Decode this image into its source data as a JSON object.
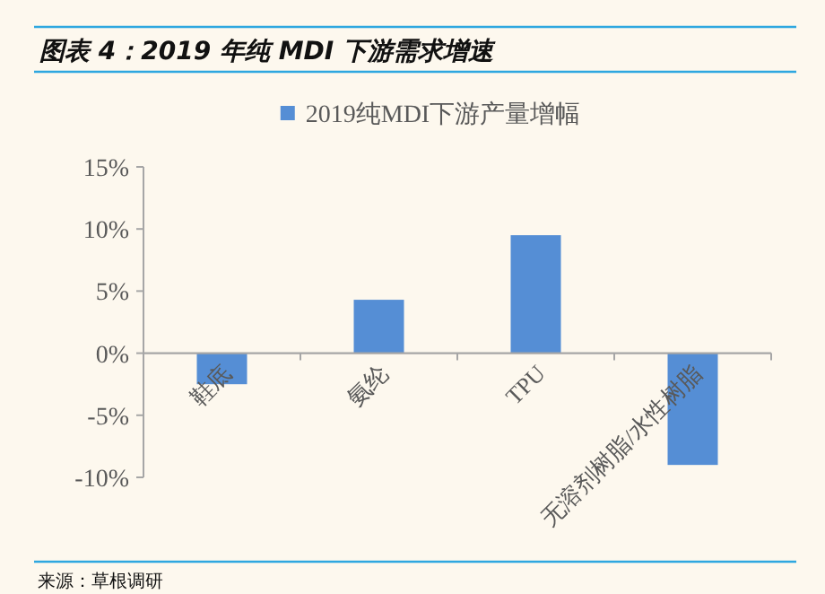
{
  "chart_data": {
    "type": "bar",
    "title": "图表 4：2019 年纯 MDI 下游需求增速",
    "categories": [
      "鞋底",
      "氨纶",
      "TPU",
      "无溶剂树脂/水性树脂"
    ],
    "series": [
      {
        "name": "2019纯MDI下游产量增幅",
        "color": "#558ed5",
        "values": [
          -2.5,
          4.3,
          9.5,
          -9.0
        ]
      }
    ],
    "ylim": [
      -10,
      15
    ],
    "yticks": [
      {
        "value": -10,
        "label": "-10%"
      },
      {
        "value": -5,
        "label": "-5%"
      },
      {
        "value": 0,
        "label": "0%"
      },
      {
        "value": 5,
        "label": "5%"
      },
      {
        "value": 10,
        "label": "10%"
      },
      {
        "value": 15,
        "label": "15%"
      }
    ],
    "legend": "top",
    "annotations": [
      "来源：草根调研"
    ]
  }
}
